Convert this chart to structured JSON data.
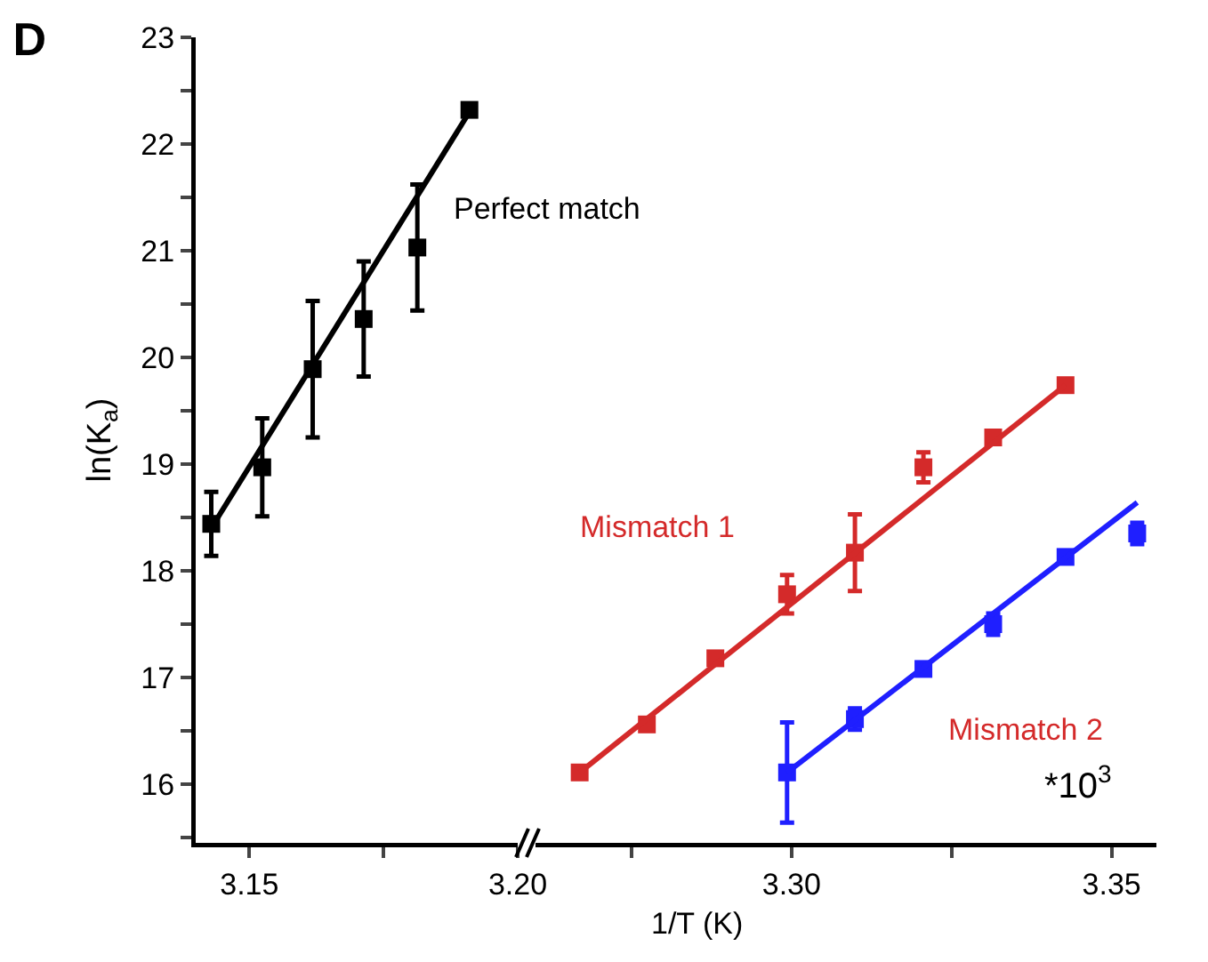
{
  "chart_data": [
    {
      "type": "scatter",
      "title": "D",
      "ylabel": "ln(K$_{a}$)",
      "marker": "square",
      "line_style": "solid",
      "xlim": [
        3.14,
        3.2
      ],
      "xticks": [
        3.15,
        {
          "value": 3.175,
          "label": null
        },
        {
          "value": 3.2,
          "label": "3.20"
        }
      ],
      "ylim": [
        15.45,
        23
      ],
      "yticks": [
        {
          "value": 15.5,
          "label": null
        },
        16,
        {
          "value": 16.5,
          "label": null
        },
        17,
        {
          "value": 17.5,
          "label": null
        },
        18,
        {
          "value": 18.5,
          "label": null
        },
        19,
        {
          "value": 19.5,
          "label": null
        },
        20,
        {
          "value": 20.5,
          "label": null
        },
        21,
        {
          "value": 21.5,
          "label": null
        },
        22,
        {
          "value": 22.5,
          "label": null
        },
        23
      ],
      "series": [
        {
          "color": "#000000",
          "x": [
            3.1429,
            3.1524,
            3.1618,
            3.1713,
            3.1813,
            3.191
          ],
          "values": [
            18.44,
            18.97,
            19.89,
            20.36,
            21.03,
            22.32
          ],
          "errors": [
            0.3,
            0.46,
            0.64,
            0.54,
            0.59,
            null
          ]
        },
        {
          "type": "line",
          "marker": "none",
          "color": "#000000",
          "x": [
            3.1429,
            3.191
          ],
          "values": [
            18.4,
            22.3
          ]
        }
      ],
      "annotations": [
        "Perfect match"
      ]
    },
    {
      "type": "scatter",
      "xlabel": "1/T (K)",
      "marker": "square",
      "line_style": "solid",
      "tick_labels": "x",
      "xlim": [
        3.26,
        3.357
      ],
      "xticks": [
        {
          "value": 3.275,
          "label": null
        },
        {
          "value": 3.3,
          "label": "3.30"
        },
        {
          "value": 3.325,
          "label": null
        },
        3.35
      ],
      "ylim": [
        15.45,
        23
      ],
      "series": [
        {
          "color": "#d42a2a",
          "x": [
            3.2669,
            3.2774,
            3.2881,
            3.2993,
            3.3099,
            3.3206,
            3.3315,
            3.3428
          ],
          "values": [
            16.11,
            16.56,
            17.18,
            17.78,
            18.17,
            18.97,
            19.25,
            19.74
          ],
          "errors": [
            null,
            null,
            null,
            0.18,
            0.36,
            0.14,
            null,
            null
          ]
        },
        {
          "type": "line",
          "marker": "none",
          "color": "#d42a2a",
          "x": [
            3.2669,
            3.3428
          ],
          "values": [
            16.11,
            19.74
          ]
        },
        {
          "color": "#1f1fff",
          "x": [
            3.2993,
            3.3099,
            3.3206,
            3.3315,
            3.3428,
            3.354
          ],
          "values": [
            16.11,
            16.61,
            17.08,
            17.5,
            18.13,
            18.35
          ],
          "errors": [
            0.47,
            0.1,
            null,
            0.1,
            null,
            0.1
          ]
        },
        {
          "type": "line",
          "marker": "none",
          "color": "#1f1fff",
          "x": [
            3.2993,
            3.354
          ],
          "values": [
            16.11,
            18.64
          ]
        }
      ],
      "annotations": [
        "Mismatch 1",
        "Mismatch 2",
        "*10$^{3}$"
      ]
    }
  ]
}
